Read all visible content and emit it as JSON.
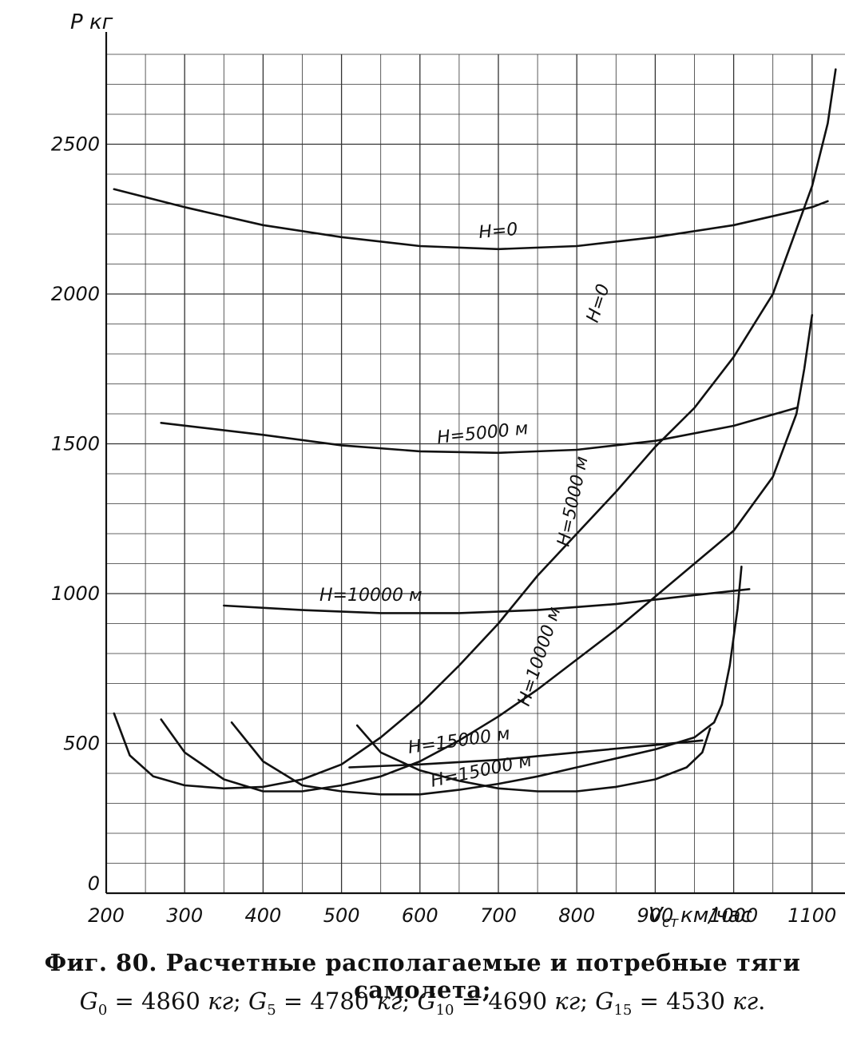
{
  "chart_data": {
    "type": "line",
    "ylabel": "P кг",
    "xlabel_v": "V",
    "xlabel_sub": "ст",
    "xlabel_unit": "км/час",
    "xlim": [
      200,
      1200
    ],
    "ylim": [
      0,
      2800
    ],
    "x_ticks": [
      "200",
      "300",
      "400",
      "500",
      "600",
      "700",
      "800",
      "900",
      "1000",
      "1100"
    ],
    "y_ticks": [
      "0",
      "500",
      "1000",
      "1500",
      "2000",
      "2500"
    ],
    "grid": true,
    "series": [
      {
        "name": "H=0",
        "kind": "available",
        "points": [
          [
            210,
            2350
          ],
          [
            300,
            2290
          ],
          [
            400,
            2230
          ],
          [
            500,
            2190
          ],
          [
            600,
            2160
          ],
          [
            700,
            2150
          ],
          [
            800,
            2160
          ],
          [
            900,
            2190
          ],
          [
            1000,
            2230
          ],
          [
            1100,
            2290
          ],
          [
            1120,
            2310
          ]
        ]
      },
      {
        "name": "H=5000 м",
        "kind": "available",
        "points": [
          [
            270,
            1570
          ],
          [
            400,
            1530
          ],
          [
            500,
            1495
          ],
          [
            600,
            1475
          ],
          [
            700,
            1470
          ],
          [
            800,
            1480
          ],
          [
            900,
            1510
          ],
          [
            1000,
            1560
          ],
          [
            1080,
            1620
          ]
        ]
      },
      {
        "name": "H=10000 м",
        "kind": "available",
        "points": [
          [
            350,
            960
          ],
          [
            450,
            945
          ],
          [
            550,
            935
          ],
          [
            650,
            935
          ],
          [
            750,
            945
          ],
          [
            850,
            965
          ],
          [
            950,
            995
          ],
          [
            1020,
            1015
          ]
        ]
      },
      {
        "name": "H=15000 м",
        "kind": "available",
        "points": [
          [
            510,
            420
          ],
          [
            600,
            430
          ],
          [
            700,
            445
          ],
          [
            800,
            470
          ],
          [
            900,
            495
          ],
          [
            960,
            510
          ]
        ]
      },
      {
        "name": "H=0",
        "kind": "required",
        "points": [
          [
            210,
            600
          ],
          [
            230,
            460
          ],
          [
            260,
            390
          ],
          [
            300,
            360
          ],
          [
            350,
            350
          ],
          [
            400,
            355
          ],
          [
            450,
            380
          ],
          [
            500,
            430
          ],
          [
            550,
            520
          ],
          [
            600,
            630
          ],
          [
            650,
            760
          ],
          [
            700,
            900
          ],
          [
            750,
            1060
          ],
          [
            800,
            1200
          ],
          [
            850,
            1340
          ],
          [
            900,
            1490
          ],
          [
            950,
            1620
          ],
          [
            1000,
            1790
          ],
          [
            1050,
            2000
          ],
          [
            1100,
            2360
          ],
          [
            1120,
            2570
          ],
          [
            1130,
            2750
          ]
        ]
      },
      {
        "name": "H=5000 м",
        "kind": "required",
        "points": [
          [
            270,
            580
          ],
          [
            300,
            470
          ],
          [
            350,
            380
          ],
          [
            400,
            340
          ],
          [
            450,
            340
          ],
          [
            500,
            360
          ],
          [
            550,
            390
          ],
          [
            600,
            440
          ],
          [
            650,
            510
          ],
          [
            700,
            590
          ],
          [
            750,
            680
          ],
          [
            800,
            780
          ],
          [
            850,
            880
          ],
          [
            900,
            990
          ],
          [
            950,
            1100
          ],
          [
            1000,
            1210
          ],
          [
            1050,
            1390
          ],
          [
            1080,
            1600
          ],
          [
            1090,
            1750
          ],
          [
            1100,
            1930
          ]
        ]
      },
      {
        "name": "H=10000 м",
        "kind": "required",
        "points": [
          [
            360,
            570
          ],
          [
            400,
            440
          ],
          [
            450,
            360
          ],
          [
            500,
            340
          ],
          [
            550,
            330
          ],
          [
            600,
            330
          ],
          [
            650,
            345
          ],
          [
            700,
            365
          ],
          [
            750,
            390
          ],
          [
            800,
            420
          ],
          [
            850,
            450
          ],
          [
            900,
            480
          ],
          [
            950,
            520
          ],
          [
            975,
            570
          ],
          [
            985,
            630
          ],
          [
            995,
            760
          ],
          [
            1005,
            950
          ],
          [
            1010,
            1090
          ]
        ]
      },
      {
        "name": "H=15000 м",
        "kind": "required",
        "points": [
          [
            520,
            560
          ],
          [
            550,
            470
          ],
          [
            600,
            410
          ],
          [
            650,
            375
          ],
          [
            700,
            350
          ],
          [
            750,
            340
          ],
          [
            800,
            340
          ],
          [
            850,
            355
          ],
          [
            900,
            380
          ],
          [
            940,
            420
          ],
          [
            960,
            470
          ],
          [
            970,
            550
          ]
        ]
      }
    ],
    "labels": [
      {
        "text": "H=0",
        "series": 0
      },
      {
        "text": "H=0",
        "series": 4
      },
      {
        "text": "H=5000 м",
        "series": 1
      },
      {
        "text": "H=5000 м",
        "series": 5
      },
      {
        "text": "H=10000 м",
        "series": 2
      },
      {
        "text": "H=10000 м",
        "series": 6
      },
      {
        "text": "H=15000 м",
        "series": 3
      },
      {
        "text": "H=15000 м",
        "series": 7
      }
    ]
  },
  "caption": {
    "line1": "Фиг. 80. Расчетные располагаемые и потребные тяги самолета;",
    "g0": "4860",
    "g5": "4780",
    "g10": "4690",
    "g15": "4530",
    "unit": "кг"
  }
}
